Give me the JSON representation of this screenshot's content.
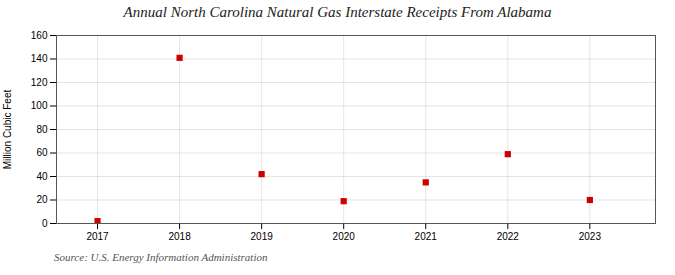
{
  "chart_data": {
    "type": "scatter",
    "title": "Annual North Carolina Natural Gas Interstate Receipts From Alabama",
    "ylabel": "Million Cubic Feet",
    "source": "Source: U.S. Energy Information Administration",
    "x": [
      2017,
      2018,
      2019,
      2020,
      2021,
      2022,
      2023
    ],
    "values": [
      2,
      141,
      42,
      19,
      35,
      59,
      20
    ],
    "xlim": [
      2016.5,
      2023.8
    ],
    "ylim": [
      0,
      160
    ],
    "xticks": [
      2017,
      2018,
      2019,
      2020,
      2021,
      2022,
      2023
    ],
    "yticks": [
      0,
      20,
      40,
      60,
      80,
      100,
      120,
      140,
      160
    ],
    "color": "#cc0000",
    "marker": "square",
    "grid": true
  }
}
